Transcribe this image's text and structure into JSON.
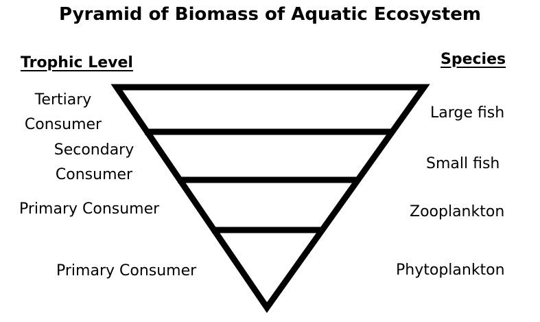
{
  "title": "Pyramid of Biomass of Aquatic Ecosystem",
  "headings": {
    "trophic_level": "Trophic Level",
    "species": "Species"
  },
  "trophic_levels": [
    {
      "line1": "Tertiary",
      "line2": "Consumer"
    },
    {
      "line1": "Secondary",
      "line2": "Consumer"
    },
    {
      "line1": "Primary Consumer"
    },
    {
      "line1": "Primary Consumer"
    }
  ],
  "species": [
    "Large fish",
    "Small fish",
    "Zooplankton",
    "Phytoplankton"
  ],
  "colors": {
    "stroke": "#000000",
    "fill": "#ffffff",
    "text": "#000000"
  }
}
